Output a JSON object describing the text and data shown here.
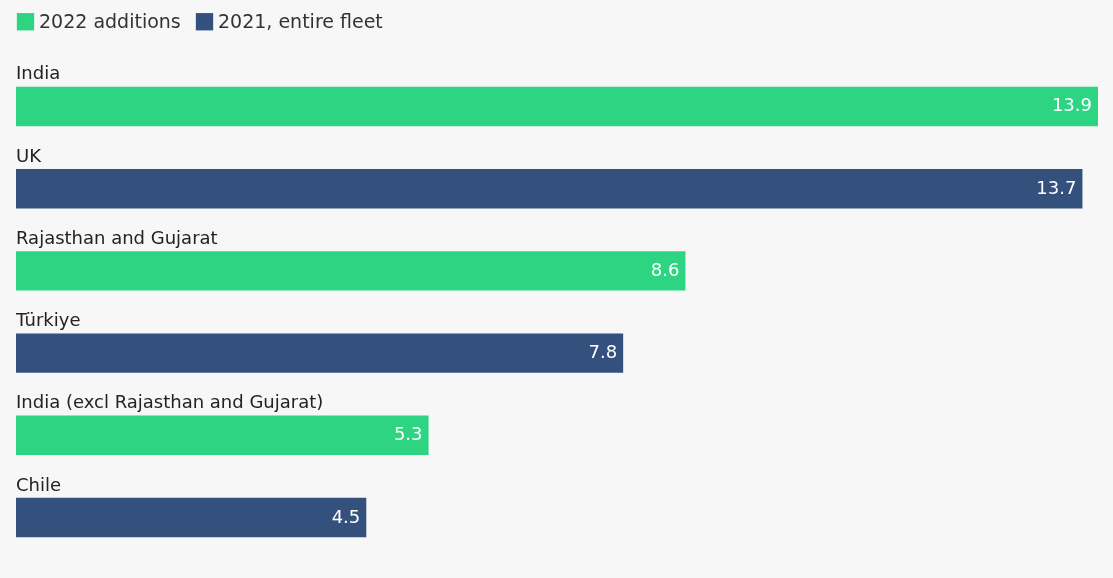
{
  "chart_data": {
    "type": "bar",
    "orientation": "horizontal",
    "categories": [
      "India",
      "UK",
      "Rajasthan and Gujarat",
      "Türkiye",
      "India (excl Rajasthan and Gujarat)",
      "Chile"
    ],
    "series": [
      {
        "name": "2022 additions",
        "color": "#2dd482",
        "values": [
          13.9,
          null,
          8.6,
          null,
          5.3,
          null
        ]
      },
      {
        "name": "2021, entire fleet",
        "color": "#34507d",
        "values": [
          null,
          13.7,
          null,
          7.8,
          null,
          4.5
        ]
      }
    ],
    "data_labels": true,
    "legend": "top left"
  }
}
